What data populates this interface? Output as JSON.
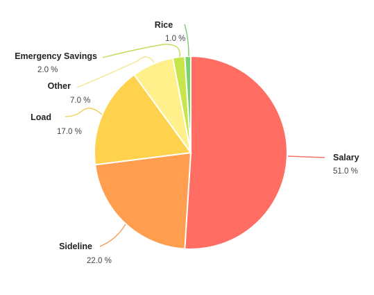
{
  "chart_data": {
    "type": "pie",
    "title": "",
    "slices": [
      {
        "name": "Salary",
        "value": 51.0,
        "label": "51.0 %",
        "color": "#FF6D63"
      },
      {
        "name": "Sideline",
        "value": 22.0,
        "label": "22.0 %",
        "color": "#FF9E4F"
      },
      {
        "name": "Load",
        "value": 17.0,
        "label": "17.0 %",
        "color": "#FFD24D"
      },
      {
        "name": "Other",
        "value": 7.0,
        "label": "7.0 %",
        "color": "#FFF08C"
      },
      {
        "name": "Emergency Savings",
        "value": 2.0,
        "label": "2.0 %",
        "color": "#C8E64C"
      },
      {
        "name": "Rice",
        "value": 1.0,
        "label": "1.0 %",
        "color": "#7BD46B"
      }
    ],
    "leader_colors": {
      "Salary": "#F0766A",
      "Sideline": "#F0A060",
      "Load": "#F2CD55",
      "Other": "#F4E592",
      "Emergency Savings": "#BEDC56",
      "Rice": "#79CC6E"
    }
  }
}
